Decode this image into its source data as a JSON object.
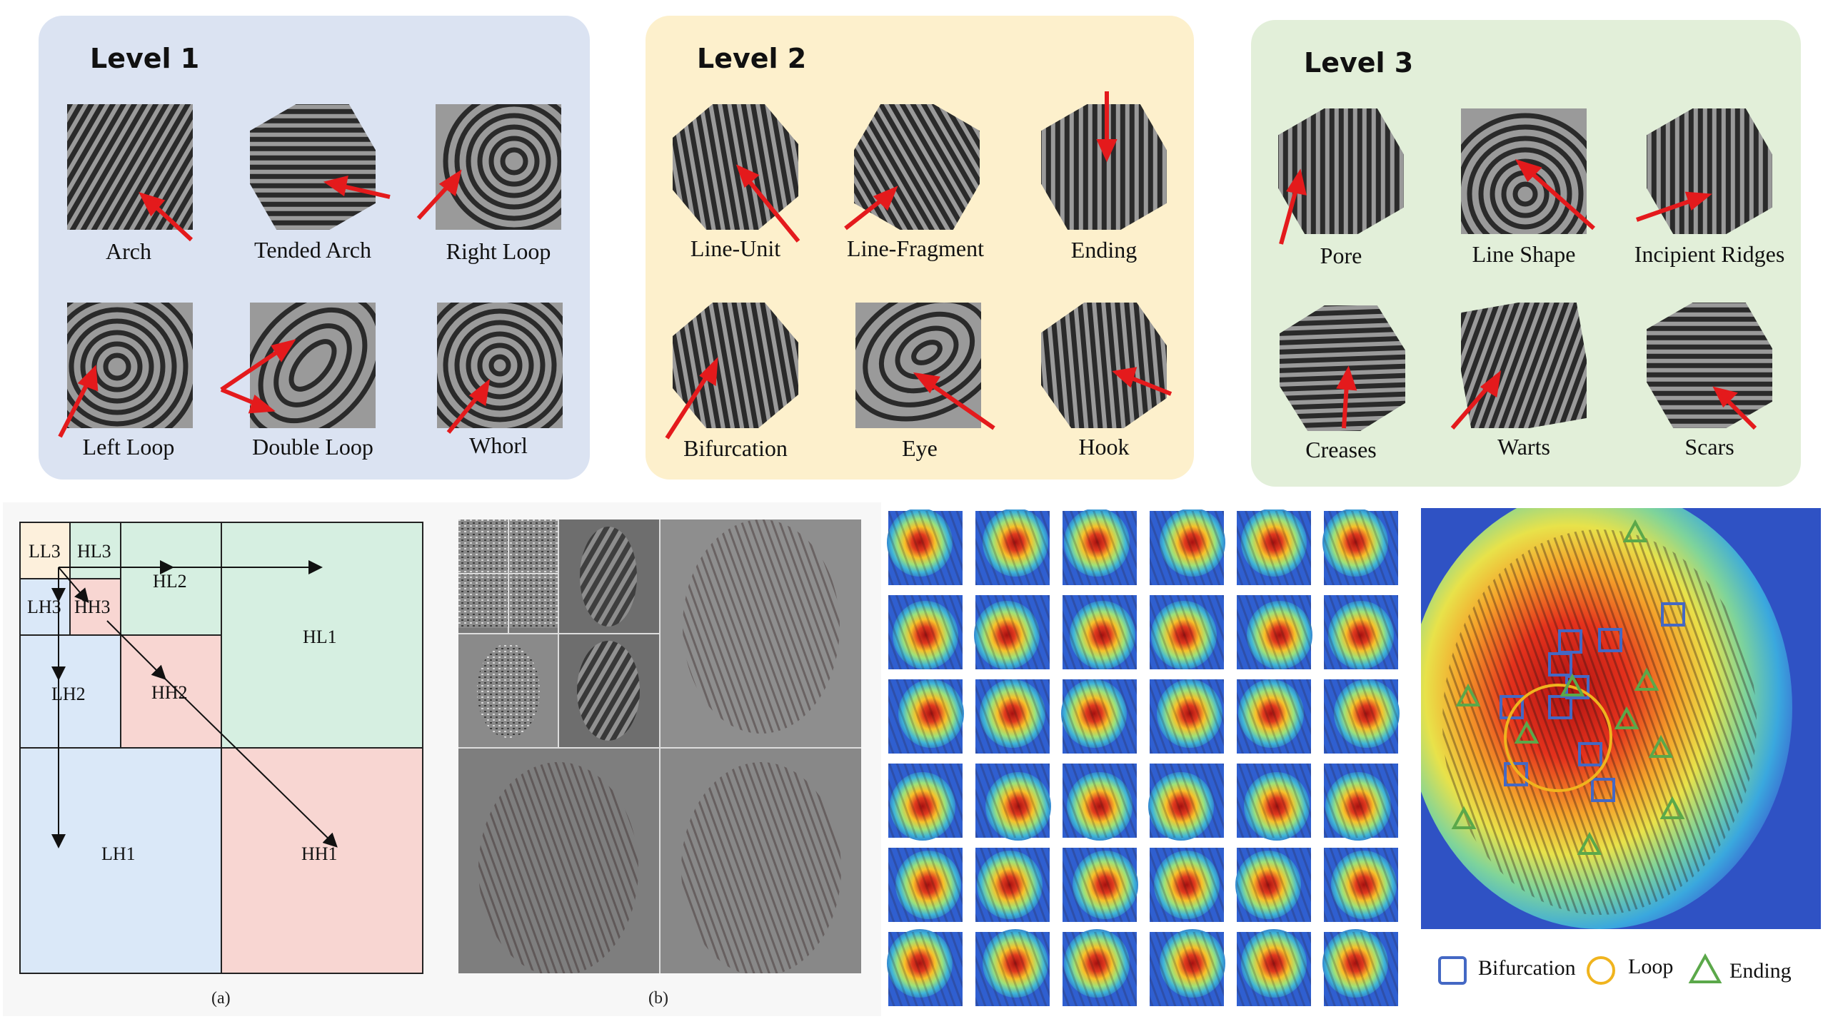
{
  "levels": [
    {
      "title": "Level 1",
      "items": [
        "Arch",
        "Tended  Arch",
        "Right Loop",
        "Left Loop",
        "Double Loop",
        "Whorl"
      ]
    },
    {
      "title": "Level 2",
      "items": [
        "Line-Unit",
        "Line-Fragment",
        "Ending",
        "Bifurcation",
        "Eye",
        "Hook"
      ]
    },
    {
      "title": "Level 3",
      "items": [
        "Pore",
        "Line  Shape",
        "Incipient Ridges",
        "Creases",
        "Warts",
        "Scars"
      ]
    }
  ],
  "wavelet": {
    "labels": {
      "ll3": "LL3",
      "hl3": "HL3",
      "lh3": "LH3",
      "hh3": "HH3",
      "hl2": "HL2",
      "lh2": "LH2",
      "hh2": "HH2",
      "hl1": "HL1",
      "lh1": "LH1",
      "hh1": "HH1"
    },
    "caption_a": "(a)",
    "caption_b": "(b)"
  },
  "legend": {
    "bifurcation": "Bifurcation",
    "loop": "Loop",
    "ending": "Ending"
  },
  "colors": {
    "level1_bg": "#dbe3f2",
    "level2_bg": "#fdf0cc",
    "level3_bg": "#e2efd9",
    "arrow": "#e41a1c",
    "wavelet_blue": "#dae8f8",
    "wavelet_green": "#d6efe1",
    "wavelet_pink": "#f8d6d2",
    "wavelet_cream": "#fdf0dc",
    "bifurcation_marker": "#4468c4",
    "loop_marker": "#f0b41e",
    "ending_marker": "#5ba84a"
  }
}
